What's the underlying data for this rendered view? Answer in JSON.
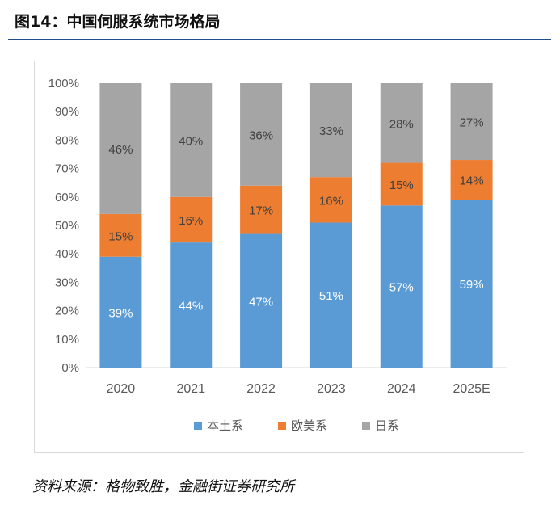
{
  "figure": {
    "title": "图14：中国伺服系统市场格局",
    "source": "资料来源：格物致胜，金融街证券研究所"
  },
  "chart_data": {
    "type": "bar",
    "stacked": true,
    "categories": [
      "2020",
      "2021",
      "2022",
      "2023",
      "2024",
      "2025E"
    ],
    "series": [
      {
        "name": "本土系",
        "color": "#5b9bd5",
        "values": [
          39,
          44,
          47,
          51,
          57,
          59
        ],
        "labels": [
          "39%",
          "44%",
          "47%",
          "51%",
          "57%",
          "59%"
        ]
      },
      {
        "name": "欧美系",
        "color": "#ed7d31",
        "values": [
          15,
          16,
          17,
          16,
          15,
          14
        ],
        "labels": [
          "15%",
          "16%",
          "17%",
          "16%",
          "15%",
          "14%"
        ]
      },
      {
        "name": "日系",
        "color": "#a5a5a5",
        "values": [
          46,
          40,
          36,
          33,
          28,
          27
        ],
        "labels": [
          "46%",
          "40%",
          "36%",
          "33%",
          "28%",
          "27%"
        ]
      }
    ],
    "ylim": [
      0,
      100
    ],
    "yticks": [
      "0%",
      "10%",
      "20%",
      "30%",
      "40%",
      "50%",
      "60%",
      "70%",
      "80%",
      "90%",
      "100%"
    ],
    "legend_position": "bottom",
    "grid": false
  }
}
